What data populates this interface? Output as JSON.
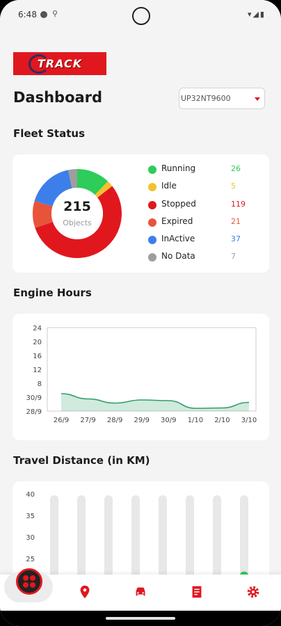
{
  "status_bar": {
    "time": "6:48"
  },
  "header": {
    "logo_text": "TRACK",
    "title": "Dashboard",
    "vehicle_value": "UP32NT9600"
  },
  "fleet": {
    "section_title": "Fleet Status",
    "total": "215",
    "total_label": "Objects",
    "items": [
      {
        "label": "Running",
        "count": "26",
        "color": "#2ecc59"
      },
      {
        "label": "Idle",
        "count": "5",
        "color": "#f2c12e"
      },
      {
        "label": "Stopped",
        "count": "119",
        "color": "#e1171e"
      },
      {
        "label": "Expired",
        "count": "21",
        "color": "#e8543a"
      },
      {
        "label": "InActive",
        "count": "37",
        "color": "#3d7fea"
      },
      {
        "label": "No Data",
        "count": "7",
        "color": "#9e9e9e"
      }
    ]
  },
  "engine": {
    "section_title": "Engine Hours"
  },
  "travel": {
    "section_title": "Travel Distance (in KM)"
  },
  "chart_data": [
    {
      "type": "area",
      "title": "Engine Hours",
      "y_tick_labels": [
        "24",
        "20",
        "16",
        "12",
        "8",
        "30/9",
        "28/9"
      ],
      "categories": [
        "26/9",
        "27/9",
        "28/9",
        "29/9",
        "30/9",
        "1/10",
        "2/10",
        "3/10"
      ],
      "values": [
        5.0,
        3.5,
        2.3,
        3.2,
        3.0,
        0.8,
        0.9,
        2.5
      ],
      "ylim": [
        0,
        24
      ],
      "color": "#2e9e6a"
    },
    {
      "type": "bar",
      "title": "Travel Distance (in KM)",
      "y_tick_labels": [
        "40",
        "35",
        "30",
        "25"
      ],
      "ylim": [
        20,
        40
      ],
      "bar_count": 8,
      "visible_values": [
        null,
        20.5,
        null,
        null,
        null,
        null,
        null,
        22
      ],
      "color": "#2ecc59",
      "track_color": "#e8e8e8"
    }
  ],
  "nav": {
    "items": [
      "dashboard",
      "location",
      "vehicle",
      "reports",
      "settings"
    ]
  }
}
